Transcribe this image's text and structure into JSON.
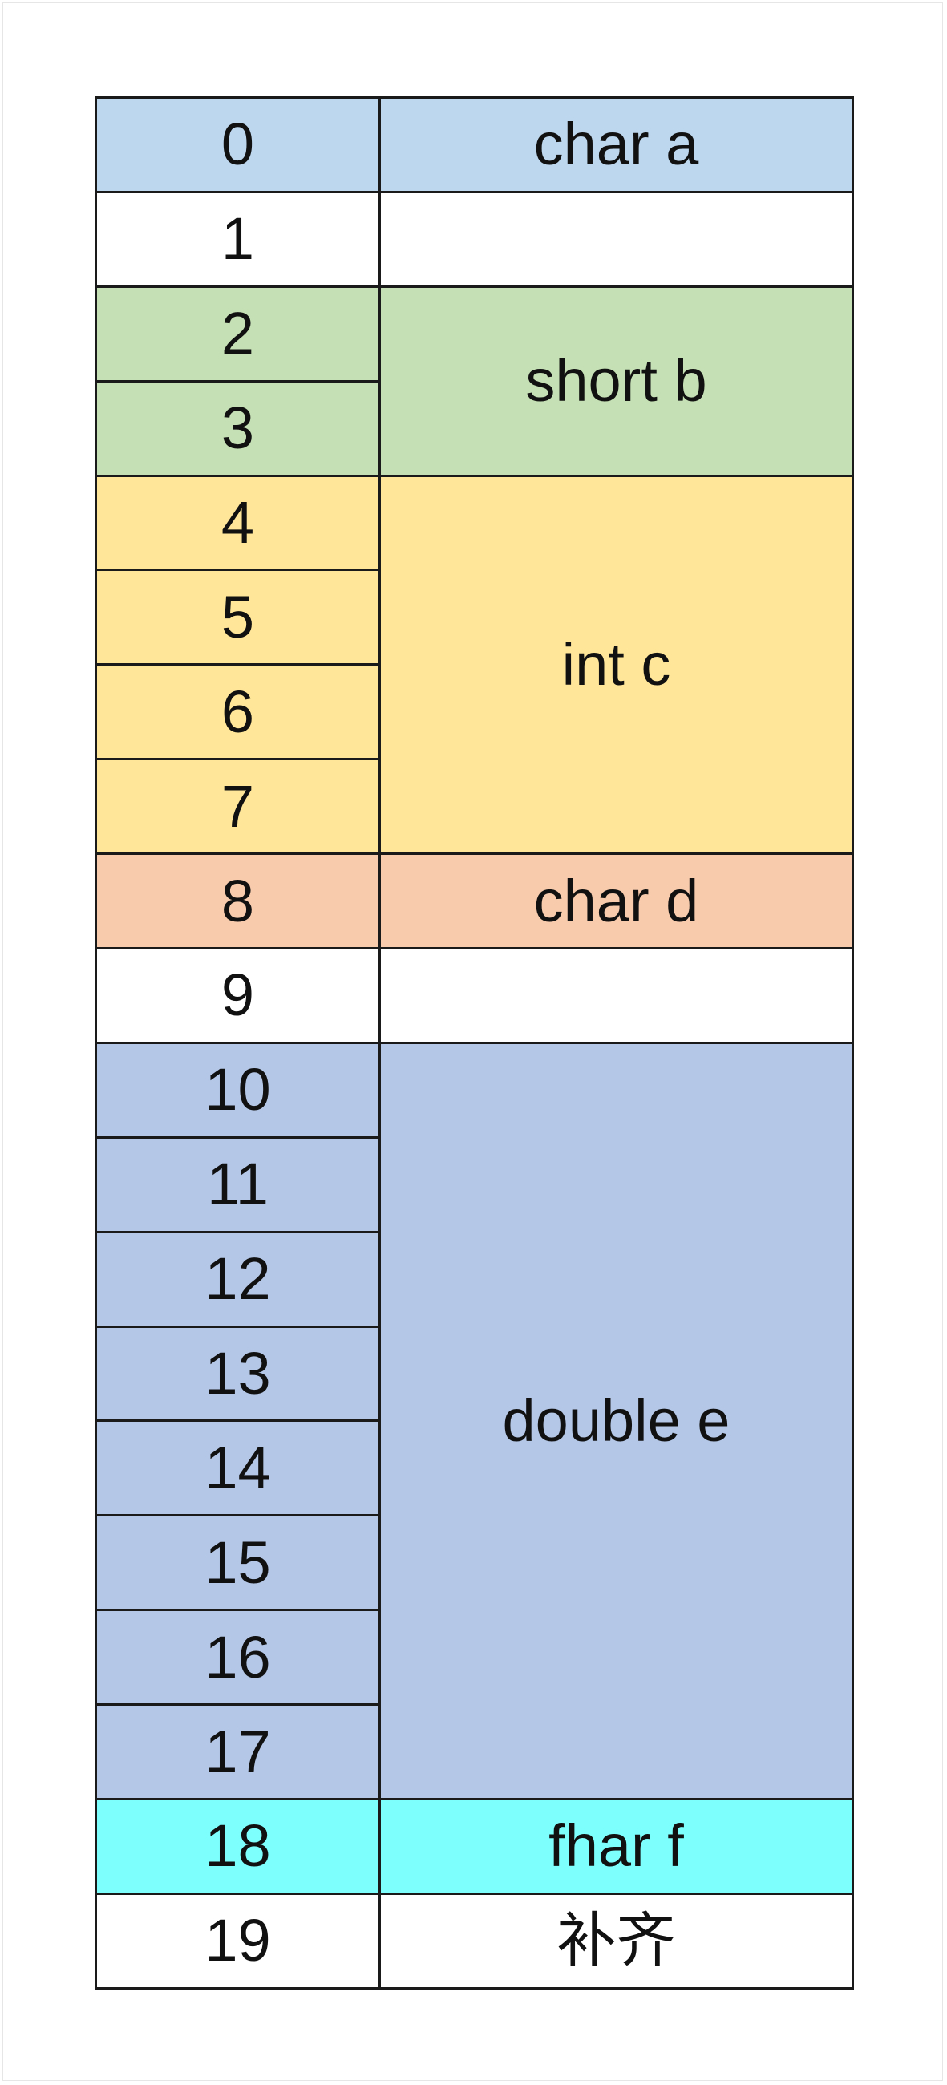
{
  "colors": {
    "char_a": "#bdd7ee",
    "padding": "#ffffff",
    "short_b": "#c5e0b4",
    "int_c": "#ffe699",
    "char_d": "#f8cbad",
    "double_e": "#b4c7e7",
    "fhar_f": "#7dfffd",
    "tail_padding": "#ffffff"
  },
  "offsets": [
    "0",
    "1",
    "2",
    "3",
    "4",
    "5",
    "6",
    "7",
    "8",
    "9",
    "10",
    "11",
    "12",
    "13",
    "14",
    "15",
    "16",
    "17",
    "18",
    "19"
  ],
  "fields": [
    {
      "label": "char a",
      "start": 0,
      "size": 1,
      "color": "#bdd7ee"
    },
    {
      "label": "",
      "start": 1,
      "size": 1,
      "color": "#ffffff"
    },
    {
      "label": "short b",
      "start": 2,
      "size": 2,
      "color": "#c5e0b4"
    },
    {
      "label": "int c",
      "start": 4,
      "size": 4,
      "color": "#ffe699"
    },
    {
      "label": "char d",
      "start": 8,
      "size": 1,
      "color": "#f8cbad"
    },
    {
      "label": "",
      "start": 9,
      "size": 1,
      "color": "#ffffff"
    },
    {
      "label": "double e",
      "start": 10,
      "size": 8,
      "color": "#b4c7e7"
    },
    {
      "label": "fhar f",
      "start": 18,
      "size": 1,
      "color": "#7dfffd"
    },
    {
      "label": "补齐",
      "start": 19,
      "size": 1,
      "color": "#ffffff"
    }
  ]
}
